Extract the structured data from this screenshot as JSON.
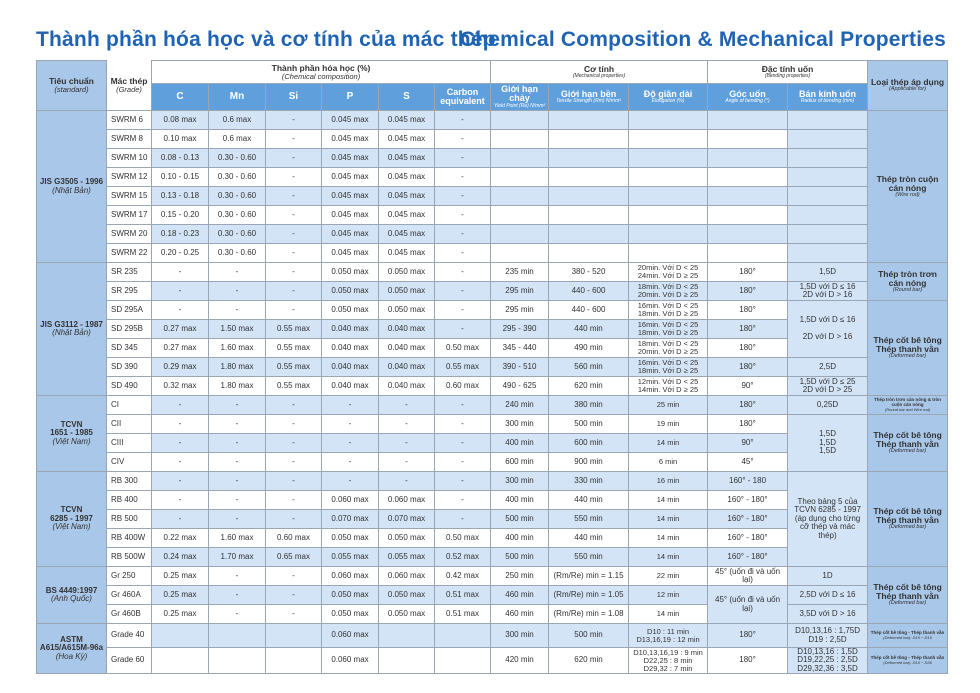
{
  "titles": {
    "vi": "Thành phần hóa học và cơ tính của mác thép",
    "en": "Chemical Composition & Mechanical Properties"
  },
  "header": {
    "standard": "Tiêu chuẩn",
    "standard_en": "(standard)",
    "grade": "Mác thép",
    "grade_en": "(Grade)",
    "chem": "Thành phần hóa học (%)",
    "chem_en": "(Chemical composition)",
    "mech": "Cơ tính",
    "mech_en": "(Mechanical properties)",
    "bend": "Đặc tính uốn",
    "bend_en": "(Bending properties)",
    "applicable": "Loại thép áp dụng",
    "applicable_en": "(Applicable for)",
    "cols": {
      "c": "C",
      "mn": "Mn",
      "si": "Si",
      "p": "P",
      "s": "S",
      "ce": "Carbon equivalent",
      "yield": "Giới hạn chảy",
      "yield_en": "Yield Point (Re) N/mm²",
      "tensile": "Giới hạn bền",
      "tensile_en": "Tensile Strength (Rm) N/mm²",
      "elong": "Độ giãn dài",
      "elong_en": "Elongation (%)",
      "angle": "Góc uốn",
      "angle_en": "Angle of bending (°)",
      "radius": "Bán kính uốn",
      "radius_en": "Radius of bending (mm)"
    }
  },
  "table": {
    "rows": [
      [
        {
          "v": "JIS G3505 - 1996",
          "sub": "(Nhật Bản)",
          "rs": 8
        },
        "SWRM 6",
        "0.08 max",
        "0.6 max",
        "-",
        "0.045 max",
        "0.045 max",
        "-",
        "",
        "",
        "",
        "",
        "",
        {
          "v": "Thép tròn cuộn\ncán nóng",
          "sub": "(Wire rod)",
          "rs": 8
        }
      ],
      [
        null,
        "SWRM 8",
        "0.10 max",
        "0.6 max",
        "-",
        "0.045 max",
        "0.045 max",
        "-",
        "",
        "",
        "",
        "",
        "",
        null
      ],
      [
        null,
        "SWRM 10",
        "0.08 - 0.13",
        "0.30 - 0.60",
        "-",
        "0.045 max",
        "0.045 max",
        "-",
        "",
        "",
        "",
        "",
        "",
        null
      ],
      [
        null,
        "SWRM 12",
        "0.10 - 0.15",
        "0.30 - 0.60",
        "-",
        "0.045 max",
        "0.045 max",
        "-",
        "",
        "",
        "",
        "",
        "",
        null
      ],
      [
        null,
        "SWRM 15",
        "0.13 - 0.18",
        "0.30 - 0.60",
        "-",
        "0.045 max",
        "0.045 max",
        "-",
        "",
        "",
        "",
        "",
        "",
        null
      ],
      [
        null,
        "SWRM 17",
        "0.15 - 0.20",
        "0.30 - 0.60",
        "-",
        "0.045 max",
        "0.045 max",
        "-",
        "",
        "",
        "",
        "",
        "",
        null
      ],
      [
        null,
        "SWRM 20",
        "0.18 - 0.23",
        "0.30 - 0.60",
        "-",
        "0.045 max",
        "0.045 max",
        "-",
        "",
        "",
        "",
        "",
        "",
        null
      ],
      [
        null,
        "SWRM 22",
        "0.20 - 0.25",
        "0.30 - 0.60",
        "-",
        "0.045 max",
        "0.045 max",
        "-",
        "",
        "",
        "",
        "",
        "",
        null
      ],
      [
        {
          "v": "JIS G3112 - 1987",
          "sub": "(Nhật Bản)",
          "rs": 7
        },
        "SR 235",
        "-",
        "-",
        "-",
        "0.050 max",
        "0.050 max",
        "-",
        "235 min",
        "380 - 520",
        "20min. Với D < 25\n24min. Với D ≥ 25",
        "180°",
        "1,5D",
        {
          "v": "Thép tròn trơn\ncán nóng",
          "sub": "(Round bar)",
          "rs": 2
        }
      ],
      [
        null,
        "SR 295",
        "-",
        "-",
        "-",
        "0.050 max",
        "0.050 max",
        "-",
        "295 min",
        "440 - 600",
        "18min. Với D < 25\n20min. Với D ≥ 25",
        "180°",
        "1,5D với D ≤ 16\n2D với D > 16",
        null
      ],
      [
        null,
        "SD 295A",
        "-",
        "-",
        "-",
        "0.050 max",
        "0.050 max",
        "-",
        "295 min",
        "440 - 600",
        "16min. Với D < 25\n18min. Với D ≥ 25",
        "180°",
        {
          "v": "1,5D với D ≤ 16\n\n2D với D > 16",
          "rs": 3
        },
        {
          "v": "Thép cốt bê tông\nThép thanh vằn",
          "sub": "(Deformed bar)",
          "rs": 5
        }
      ],
      [
        null,
        "SD 295B",
        "0.27 max",
        "1.50 max",
        "0.55 max",
        "0.040 max",
        "0.040 max",
        "-",
        "295 - 390",
        "440 min",
        "16min. Với D < 25\n18min. Với D ≥ 25",
        "180°",
        null,
        null
      ],
      [
        null,
        "SD 345",
        "0.27 max",
        "1.60 max",
        "0.55 max",
        "0.040 max",
        "0.040 max",
        "0.50 max",
        "345 - 440",
        "490 min",
        "18min. Với D < 25\n20min. Với D ≥ 25",
        "180°",
        null,
        null
      ],
      [
        null,
        "SD 390",
        "0.29 max",
        "1.80 max",
        "0.55 max",
        "0.040 max",
        "0.040 max",
        "0.55 max",
        "390 - 510",
        "560 min",
        "16min. Với D < 25\n18min. Với D ≥ 25",
        "180°",
        "2,5D",
        null
      ],
      [
        null,
        "SD 490",
        "0.32 max",
        "1.80 max",
        "0.55 max",
        "0.040 max",
        "0.040 max",
        "0.60 max",
        "490 - 625",
        "620 min",
        "12min. Với D < 25\n14min. Với D ≥ 25",
        "90°",
        "1,5D với D ≤ 25\n2D với D > 25",
        null
      ],
      [
        {
          "v": "TCVN\n1651 - 1985",
          "sub": "(Việt Nam)",
          "rs": 4
        },
        "CI",
        "-",
        "-",
        "-",
        "-",
        "-",
        "-",
        "240 min",
        "380 min",
        "25 min",
        "180°",
        "0,25D",
        {
          "v": "Thép tròn trơn cán nóng & tròn cuộn cán nóng",
          "sub": "(Round bar and Wire rod)",
          "small": true
        }
      ],
      [
        null,
        "CII",
        "-",
        "-",
        "-",
        "-",
        "-",
        "-",
        "300 min",
        "500 min",
        "19 min",
        "180°",
        {
          "v": "1,5D\n1,5D\n1,5D",
          "rs": 3
        },
        {
          "v": "Thép cốt bê tông\nThép thanh vằn",
          "sub": "(Deformed bar)",
          "rs": 3
        }
      ],
      [
        null,
        "CIII",
        "-",
        "-",
        "-",
        "-",
        "-",
        "-",
        "400 min",
        "600 min",
        "14 min",
        "90°",
        null,
        null
      ],
      [
        null,
        "CIV",
        "-",
        "-",
        "-",
        "-",
        "-",
        "-",
        "600 min",
        "900 min",
        "6 min",
        "45°",
        null,
        null
      ],
      [
        {
          "v": "TCVN\n6285 - 1997",
          "sub": "(Việt Nam)",
          "rs": 5
        },
        "RB 300",
        "-",
        "-",
        "-",
        "-",
        "-",
        "-",
        "300 min",
        "330 min",
        "16 min",
        "160° - 180",
        {
          "v": "Theo bảng 5 của\nTCVN 6285 - 1997\n(áp dụng cho từng\ncỡ thép và mác thép)",
          "rs": 5
        },
        {
          "v": "Thép cốt bê tông\nThép thanh vằn",
          "sub": "(Deformed bar)",
          "rs": 5
        }
      ],
      [
        null,
        "RB 400",
        "-",
        "-",
        "-",
        "0.060 max",
        "0.060 max",
        "-",
        "400 min",
        "440 min",
        "14 min",
        "160° - 180°",
        null,
        null
      ],
      [
        null,
        "RB 500",
        "-",
        "-",
        "-",
        "0.070 max",
        "0.070 max",
        "-",
        "500 min",
        "550 min",
        "14 min",
        "160° - 180°",
        null,
        null
      ],
      [
        null,
        "RB 400W",
        "0.22 max",
        "1.60 max",
        "0.60 max",
        "0.050 max",
        "0.050 max",
        "0.50 max",
        "400 min",
        "440 min",
        "14 min",
        "160° - 180°",
        null,
        null
      ],
      [
        null,
        "RB 500W",
        "0.24 max",
        "1.70 max",
        "0.65 max",
        "0.055 max",
        "0.055 max",
        "0.52 max",
        "500 min",
        "550 min",
        "14 min",
        "160° - 180°",
        null,
        null
      ],
      [
        {
          "v": "BS 4449:1997",
          "sub": "(Anh Quốc)",
          "rs": 3
        },
        "Gr 250",
        "0.25 max",
        "-",
        "-",
        "0.060 max",
        "0.060 max",
        "0.42 max",
        "250 min",
        "(Rm/Re) min = 1.15",
        "22 min",
        "45° (uốn đi và uốn lại)",
        "1D",
        {
          "v": "Thép cốt bê tông\nThép thanh vằn",
          "sub": "(Deformed bar)",
          "rs": 3
        }
      ],
      [
        null,
        "Gr 460A",
        "0.25 max",
        "-",
        "-",
        "0.050 max",
        "0.050 max",
        "0.51 max",
        "460 min",
        "(Rm/Re) min = 1.05",
        "12 min",
        {
          "v": "45° (uốn đi và uốn lại)",
          "rs": 2
        },
        "2,5D với D ≤ 16",
        null
      ],
      [
        null,
        "Gr 460B",
        "0.25 max",
        "-",
        "-",
        "0.050 max",
        "0.050 max",
        "0.51 max",
        "460 min",
        "(Rm/Re) min = 1.08",
        "14 min",
        null,
        "3,5D với D > 16",
        null
      ],
      [
        {
          "v": "ASTM\nA615/A615M-96a",
          "sub": "(Hoa Kỳ)",
          "rs": 2
        },
        "Grade 40",
        "",
        "",
        "",
        "0.060 max",
        "",
        "",
        "300 min",
        "500 min",
        "D10          : 11 min\nD13,16,19 : 12 min",
        "180°",
        "D10,13,16 : 1,75D\nD19 : 2,5D",
        {
          "v": "Thép cốt bê tông - Thép thanh vằn",
          "sub": "(Deformed bar): D10 ~ D19",
          "small": true
        }
      ],
      [
        null,
        "Grade 60",
        "",
        "",
        "",
        "0.060 max",
        "",
        "",
        "420 min",
        "620 min",
        "D10,13,16,19 : 9 min\nD22,25 : 8 min\nD29,32 : 7 min",
        "180°",
        "D10,13,16 : 1,5D\nD19,22,25 : 2,5D\nD29,32,36 : 3,5D",
        {
          "v": "Thép cốt bê tông - Thép thanh vằn",
          "sub": "(Deformed bar): D10 ~ D36",
          "small": true
        }
      ]
    ]
  }
}
